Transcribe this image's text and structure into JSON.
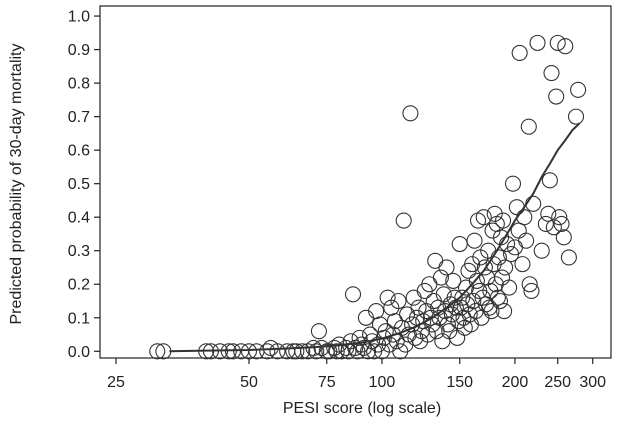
{
  "chart_data": {
    "type": "scatter",
    "title": "",
    "xlabel": "PESI score (log scale)",
    "ylabel": "Predicted probability of 30-day mortality",
    "x_scale": "log",
    "xlim": [
      23,
      330
    ],
    "ylim": [
      -0.02,
      1.03
    ],
    "x_ticks": [
      25,
      50,
      75,
      100,
      150,
      200,
      250,
      300
    ],
    "x_tick_labels": [
      "25",
      "50",
      "75",
      "100",
      "150",
      "200",
      "250",
      "300"
    ],
    "y_ticks": [
      0.0,
      0.1,
      0.2,
      0.3,
      0.4,
      0.5,
      0.6,
      0.7,
      0.8,
      0.9,
      1.0
    ],
    "y_tick_labels": [
      "0.0",
      "0.1",
      "0.2",
      "0.3",
      "0.4",
      "0.5",
      "0.6",
      "0.7",
      "0.8",
      "0.9",
      "1.0"
    ],
    "grid": false,
    "marker": "open-circle",
    "colors": {
      "marker": "#333333",
      "line": "#333333",
      "axis": "#222222"
    },
    "series": [
      {
        "type": "scatter",
        "points": [
          [
            31,
            0.0
          ],
          [
            32,
            0.0
          ],
          [
            40,
            0.0
          ],
          [
            41,
            0.0
          ],
          [
            43,
            0.0
          ],
          [
            45,
            0.0
          ],
          [
            46,
            0.0
          ],
          [
            48,
            0.0
          ],
          [
            50,
            0.0
          ],
          [
            52,
            0.0
          ],
          [
            55,
            0.0
          ],
          [
            56,
            0.01
          ],
          [
            58,
            0.0
          ],
          [
            61,
            0.0
          ],
          [
            63,
            0.0
          ],
          [
            64,
            0.0
          ],
          [
            66,
            0.0
          ],
          [
            68,
            0.0
          ],
          [
            70,
            0.01
          ],
          [
            71,
            0.0
          ],
          [
            72,
            0.06
          ],
          [
            73,
            0.01
          ],
          [
            75,
            0.0
          ],
          [
            76,
            0.0
          ],
          [
            78,
            0.01
          ],
          [
            79,
            0.0
          ],
          [
            80,
            0.02
          ],
          [
            81,
            0.0
          ],
          [
            83,
            0.01
          ],
          [
            84,
            0.0
          ],
          [
            85,
            0.03
          ],
          [
            86,
            0.17
          ],
          [
            87,
            0.01
          ],
          [
            88,
            0.0
          ],
          [
            89,
            0.04
          ],
          [
            90,
            0.02
          ],
          [
            91,
            0.01
          ],
          [
            92,
            0.1
          ],
          [
            93,
            0.0
          ],
          [
            94,
            0.05
          ],
          [
            95,
            0.03
          ],
          [
            96,
            0.0
          ],
          [
            97,
            0.12
          ],
          [
            98,
            0.02
          ],
          [
            99,
            0.08
          ],
          [
            100,
            0.0
          ],
          [
            101,
            0.04
          ],
          [
            102,
            0.06
          ],
          [
            103,
            0.16
          ],
          [
            104,
            0.02
          ],
          [
            105,
            0.13
          ],
          [
            106,
            0.05
          ],
          [
            107,
            0.09
          ],
          [
            108,
            0.03
          ],
          [
            109,
            0.15
          ],
          [
            110,
            0.0
          ],
          [
            111,
            0.07
          ],
          [
            112,
            0.39
          ],
          [
            113,
            0.02
          ],
          [
            114,
            0.11
          ],
          [
            115,
            0.05
          ],
          [
            116,
            0.71
          ],
          [
            117,
            0.08
          ],
          [
            118,
            0.16
          ],
          [
            119,
            0.04
          ],
          [
            120,
            0.1
          ],
          [
            121,
            0.13
          ],
          [
            122,
            0.03
          ],
          [
            123,
            0.06
          ],
          [
            124,
            0.09
          ],
          [
            125,
            0.18
          ],
          [
            126,
            0.12
          ],
          [
            127,
            0.05
          ],
          [
            128,
            0.2
          ],
          [
            129,
            0.1
          ],
          [
            130,
            0.08
          ],
          [
            131,
            0.15
          ],
          [
            132,
            0.27
          ],
          [
            133,
            0.06
          ],
          [
            134,
            0.13
          ],
          [
            135,
            0.1
          ],
          [
            136,
            0.22
          ],
          [
            137,
            0.03
          ],
          [
            138,
            0.17
          ],
          [
            139,
            0.12
          ],
          [
            140,
            0.25
          ],
          [
            141,
            0.08
          ],
          [
            142,
            0.06
          ],
          [
            143,
            0.14
          ],
          [
            144,
            0.11
          ],
          [
            145,
            0.21
          ],
          [
            146,
            0.16
          ],
          [
            147,
            0.13
          ],
          [
            148,
            0.04
          ],
          [
            149,
            0.09
          ],
          [
            150,
            0.32
          ],
          [
            151,
            0.13
          ],
          [
            152,
            0.16
          ],
          [
            153,
            0.1
          ],
          [
            154,
            0.07
          ],
          [
            155,
            0.19
          ],
          [
            156,
            0.14
          ],
          [
            157,
            0.24
          ],
          [
            158,
            0.11
          ],
          [
            159,
            0.08
          ],
          [
            160,
            0.26
          ],
          [
            161,
            0.15
          ],
          [
            162,
            0.33
          ],
          [
            163,
            0.12
          ],
          [
            164,
            0.21
          ],
          [
            165,
            0.39
          ],
          [
            166,
            0.18
          ],
          [
            167,
            0.28
          ],
          [
            168,
            0.1
          ],
          [
            169,
            0.16
          ],
          [
            170,
            0.4
          ],
          [
            171,
            0.25
          ],
          [
            172,
            0.14
          ],
          [
            173,
            0.22
          ],
          [
            174,
            0.3
          ],
          [
            175,
            0.13
          ],
          [
            176,
            0.18
          ],
          [
            177,
            0.12
          ],
          [
            178,
            0.36
          ],
          [
            179,
            0.26
          ],
          [
            180,
            0.41
          ],
          [
            181,
            0.2
          ],
          [
            182,
            0.38
          ],
          [
            183,
            0.16
          ],
          [
            184,
            0.28
          ],
          [
            185,
            0.15
          ],
          [
            186,
            0.34
          ],
          [
            187,
            0.22
          ],
          [
            188,
            0.39
          ],
          [
            189,
            0.12
          ],
          [
            190,
            0.25
          ],
          [
            192,
            0.32
          ],
          [
            194,
            0.19
          ],
          [
            196,
            0.29
          ],
          [
            198,
            0.5
          ],
          [
            200,
            0.31
          ],
          [
            202,
            0.43
          ],
          [
            204,
            0.36
          ],
          [
            205,
            0.89
          ],
          [
            208,
            0.26
          ],
          [
            210,
            0.4
          ],
          [
            212,
            0.33
          ],
          [
            215,
            0.67
          ],
          [
            216,
            0.2
          ],
          [
            218,
            0.18
          ],
          [
            220,
            0.44
          ],
          [
            225,
            0.92
          ],
          [
            230,
            0.3
          ],
          [
            235,
            0.38
          ],
          [
            238,
            0.41
          ],
          [
            240,
            0.51
          ],
          [
            242,
            0.83
          ],
          [
            245,
            0.37
          ],
          [
            248,
            0.76
          ],
          [
            250,
            0.92
          ],
          [
            252,
            0.4
          ],
          [
            255,
            0.38
          ],
          [
            258,
            0.34
          ],
          [
            260,
            0.91
          ],
          [
            265,
            0.28
          ],
          [
            275,
            0.7
          ],
          [
            278,
            0.78
          ]
        ]
      },
      {
        "type": "line",
        "x": [
          33,
          40,
          50,
          60,
          70,
          80,
          90,
          100,
          110,
          120,
          130,
          140,
          150,
          160,
          170,
          180,
          190,
          200,
          210,
          220,
          230,
          240,
          250,
          260,
          270,
          280
        ],
        "y": [
          0.0,
          0.002,
          0.004,
          0.008,
          0.012,
          0.018,
          0.026,
          0.038,
          0.055,
          0.075,
          0.1,
          0.13,
          0.16,
          0.2,
          0.24,
          0.29,
          0.34,
          0.39,
          0.43,
          0.47,
          0.52,
          0.56,
          0.6,
          0.63,
          0.66,
          0.68
        ]
      }
    ]
  }
}
